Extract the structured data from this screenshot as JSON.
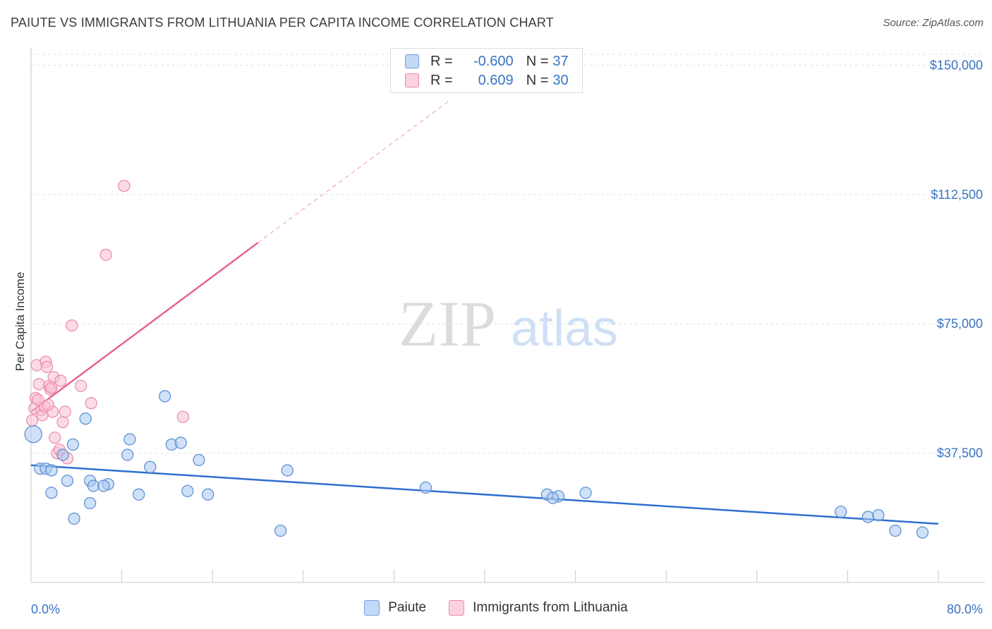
{
  "title": "PAIUTE VS IMMIGRANTS FROM LITHUANIA PER CAPITA INCOME CORRELATION CHART",
  "source": "Source: ZipAtlas.com",
  "watermark": {
    "zip": "ZIP",
    "atlas": "atlas"
  },
  "legend": {
    "rows": [
      {
        "r_label": "R =",
        "r_value": "-0.600",
        "n_label": "N =",
        "n_value": "37",
        "color": "#a9c8f0",
        "border": "#6f9fdc"
      },
      {
        "r_label": "R =",
        "r_value": "0.609",
        "n_label": "N =",
        "n_value": "30",
        "color": "#f7bfd0",
        "border": "#e986a7"
      }
    ]
  },
  "bottom_legend": [
    "Paiute",
    "Immigrants from Lithuania"
  ],
  "colors": {
    "blue": "#3a74c4",
    "blue_fill": "#a9c8f0",
    "pink": "#e8638d",
    "pink_fill": "#f7bfd0"
  },
  "chart_data": {
    "type": "scatter",
    "title": "PAIUTE VS IMMIGRANTS FROM LITHUANIA PER CAPITA INCOME CORRELATION CHART",
    "xlabel": "",
    "ylabel": "Per Capita Income",
    "xlim": [
      0,
      80
    ],
    "ylim": [
      0,
      155000
    ],
    "x_tick_labels": [
      "0.0%",
      "80.0%"
    ],
    "y_ticks": [
      37500,
      75000,
      112500,
      150000
    ],
    "y_tick_labels": [
      "$37,500",
      "$75,000",
      "$112,500",
      "$150,000"
    ],
    "grid": true,
    "legend_position": "top-center",
    "series": [
      {
        "name": "Paiute",
        "color": "#3a74c4",
        "points": [
          [
            0.2,
            43000
          ],
          [
            0.8,
            33000
          ],
          [
            1.3,
            33000
          ],
          [
            1.8,
            32500
          ],
          [
            2.8,
            37000
          ],
          [
            3.2,
            29500
          ],
          [
            1.8,
            26000
          ],
          [
            3.7,
            40000
          ],
          [
            5.2,
            29500
          ],
          [
            5.5,
            28000
          ],
          [
            6.8,
            28500
          ],
          [
            6.4,
            28000
          ],
          [
            8.5,
            37000
          ],
          [
            8.7,
            41500
          ],
          [
            9.5,
            25500
          ],
          [
            5.2,
            23000
          ],
          [
            3.8,
            18500
          ],
          [
            10.5,
            33500
          ],
          [
            11.8,
            54000
          ],
          [
            4.8,
            47500
          ],
          [
            12.4,
            40000
          ],
          [
            13.2,
            40500
          ],
          [
            13.8,
            26500
          ],
          [
            14.8,
            35500
          ],
          [
            15.6,
            25500
          ],
          [
            22.6,
            32500
          ],
          [
            22.0,
            15000
          ],
          [
            34.8,
            27500
          ],
          [
            45.5,
            25500
          ],
          [
            46.5,
            25000
          ],
          [
            46.0,
            24500
          ],
          [
            48.9,
            26000
          ],
          [
            71.4,
            20500
          ],
          [
            73.8,
            19000
          ],
          [
            74.7,
            19500
          ],
          [
            76.2,
            15000
          ],
          [
            78.6,
            14500
          ]
        ],
        "trend": {
          "x": [
            0,
            80
          ],
          "y": [
            34000,
            17000
          ]
        }
      },
      {
        "name": "Immigrants from Lithuania",
        "color": "#e8638d",
        "points": [
          [
            0.1,
            47000
          ],
          [
            0.3,
            50500
          ],
          [
            0.4,
            53500
          ],
          [
            0.5,
            63000
          ],
          [
            0.7,
            57500
          ],
          [
            0.9,
            50000
          ],
          [
            1.0,
            48500
          ],
          [
            1.2,
            51000
          ],
          [
            1.3,
            64000
          ],
          [
            1.4,
            62500
          ],
          [
            1.6,
            57000
          ],
          [
            1.7,
            56000
          ],
          [
            1.8,
            56500
          ],
          [
            1.9,
            49500
          ],
          [
            2.0,
            59500
          ],
          [
            2.1,
            42000
          ],
          [
            2.3,
            37500
          ],
          [
            2.5,
            38500
          ],
          [
            2.6,
            58500
          ],
          [
            2.8,
            46500
          ],
          [
            3.0,
            49500
          ],
          [
            3.2,
            36000
          ],
          [
            3.6,
            74500
          ],
          [
            4.4,
            57000
          ],
          [
            5.3,
            52000
          ],
          [
            6.6,
            95000
          ],
          [
            8.2,
            115000
          ],
          [
            13.4,
            48000
          ],
          [
            0.6,
            53000
          ],
          [
            1.5,
            51500
          ]
        ],
        "trend": {
          "x": [
            0,
            20
          ],
          "y": [
            49500,
            98500
          ]
        },
        "trend_extension": {
          "x": [
            20,
            37
          ],
          "y": [
            98500,
            140000
          ]
        }
      }
    ]
  }
}
